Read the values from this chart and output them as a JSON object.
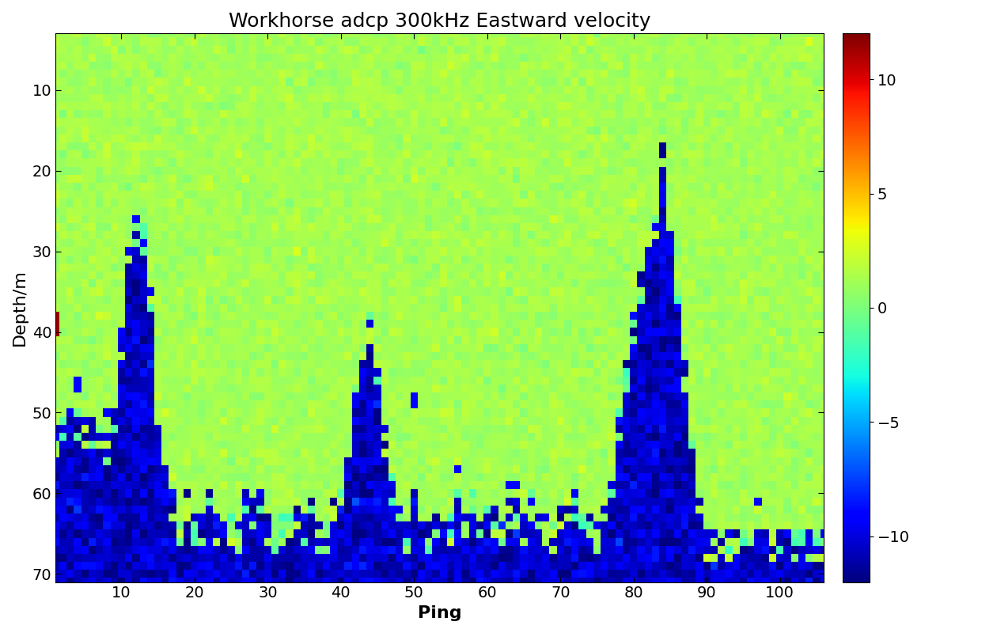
{
  "title": "Workhorse adcp 300kHz Eastward velocity",
  "xlabel": "Ping",
  "ylabel": "Depth/m",
  "vmin": -12,
  "vmax": 12,
  "depth_min": 3,
  "depth_max": 71,
  "ping_min": 1,
  "ping_max": 106,
  "xticks": [
    10,
    20,
    30,
    40,
    50,
    60,
    70,
    80,
    90,
    100
  ],
  "yticks": [
    10,
    20,
    30,
    40,
    50,
    60,
    70
  ],
  "colorbar_ticks": [
    -10,
    -5,
    0,
    5,
    10
  ],
  "cmap": "jet",
  "title_fontsize": 18,
  "axis_label_fontsize": 16,
  "tick_fontsize": 14,
  "colorbar_fontsize": 14,
  "bg_value": 1.2,
  "bg_noise": 0.4,
  "invalid_value_mean": -10.5,
  "invalid_value_std": 1.0,
  "seed": 42
}
